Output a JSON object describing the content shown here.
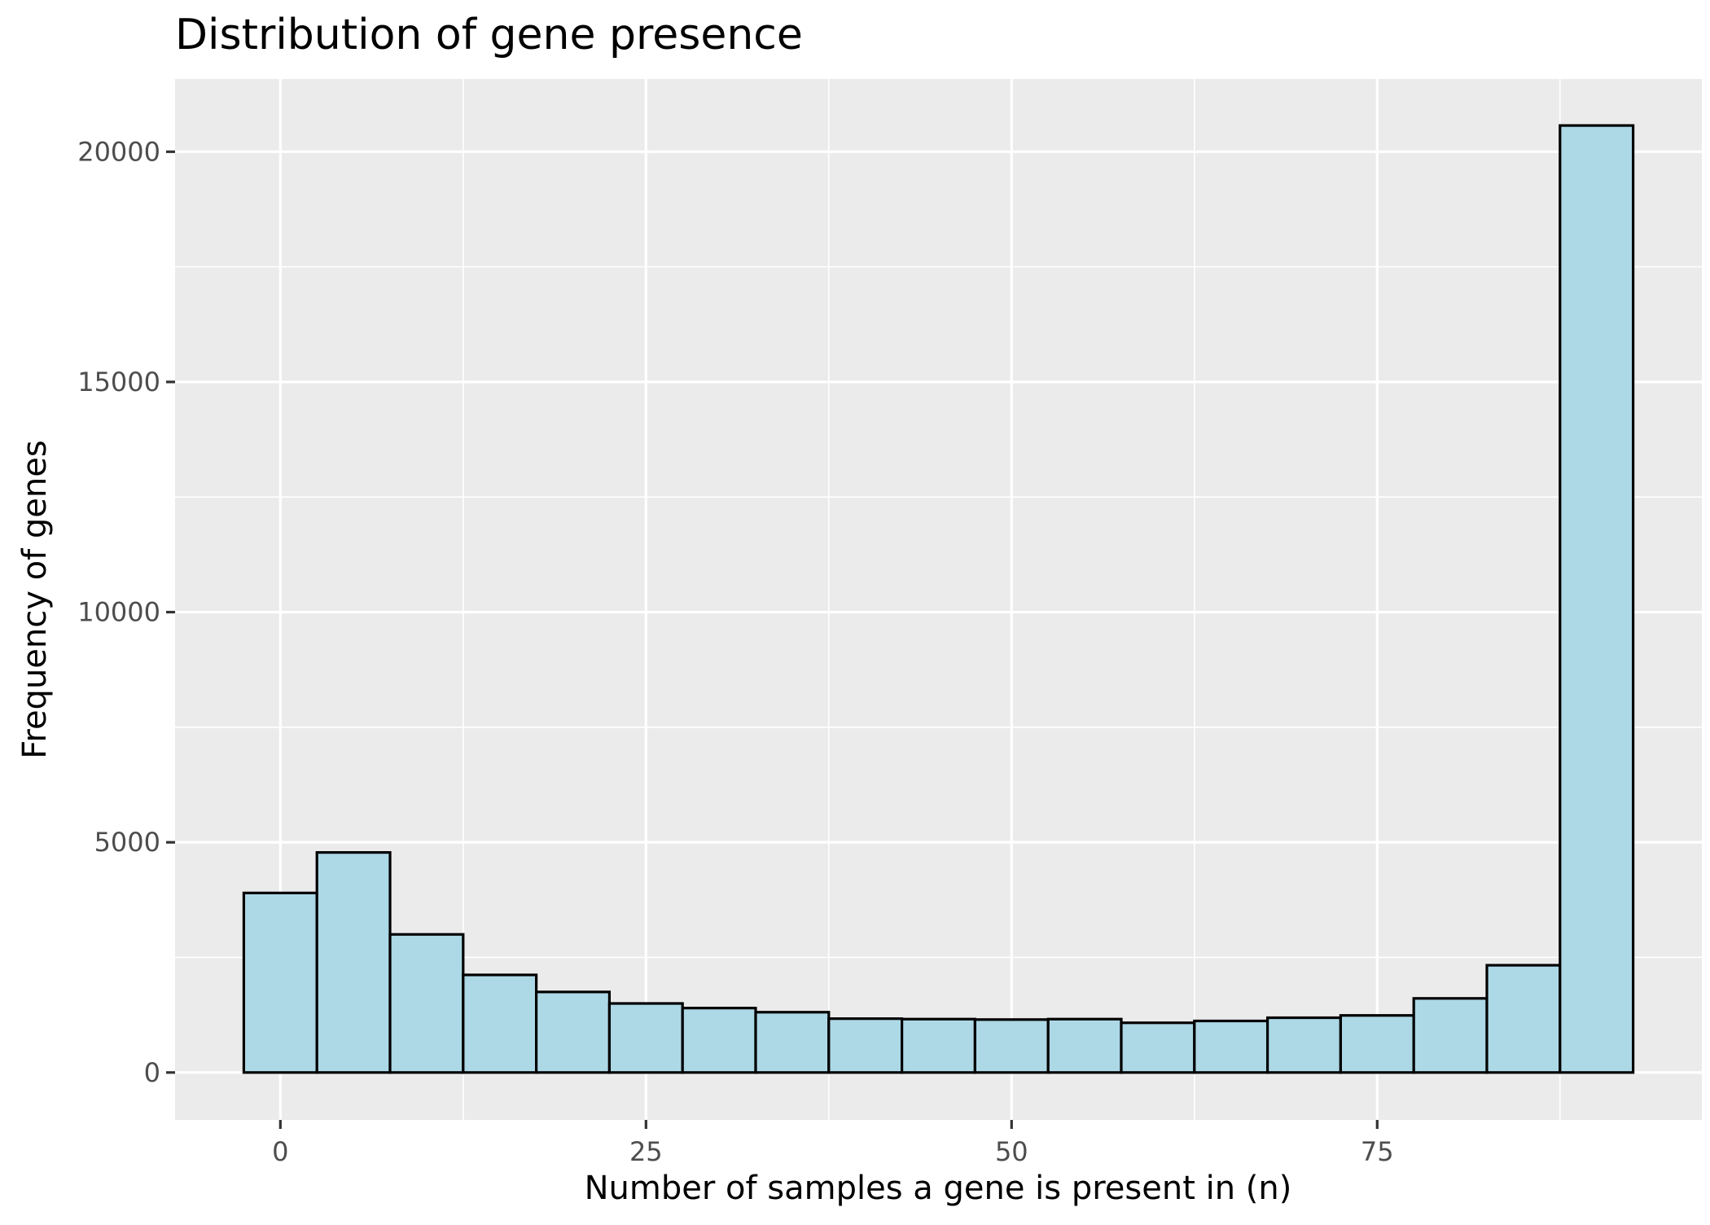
{
  "chart_data": {
    "type": "bar",
    "title": "Distribution of gene presence",
    "xlabel": "Number of samples a gene is present in (n)",
    "ylabel": "Frequency of genes",
    "bin_width": 5,
    "bins": [
      {
        "x_start": -2.5,
        "x_end": 2.5,
        "count": 3900
      },
      {
        "x_start": 2.5,
        "x_end": 7.5,
        "count": 4780
      },
      {
        "x_start": 7.5,
        "x_end": 12.5,
        "count": 3000
      },
      {
        "x_start": 12.5,
        "x_end": 17.5,
        "count": 2120
      },
      {
        "x_start": 17.5,
        "x_end": 22.5,
        "count": 1750
      },
      {
        "x_start": 22.5,
        "x_end": 27.5,
        "count": 1500
      },
      {
        "x_start": 27.5,
        "x_end": 32.5,
        "count": 1400
      },
      {
        "x_start": 32.5,
        "x_end": 37.5,
        "count": 1310
      },
      {
        "x_start": 37.5,
        "x_end": 42.5,
        "count": 1170
      },
      {
        "x_start": 42.5,
        "x_end": 47.5,
        "count": 1160
      },
      {
        "x_start": 47.5,
        "x_end": 52.5,
        "count": 1150
      },
      {
        "x_start": 52.5,
        "x_end": 57.5,
        "count": 1160
      },
      {
        "x_start": 57.5,
        "x_end": 62.5,
        "count": 1080
      },
      {
        "x_start": 62.5,
        "x_end": 67.5,
        "count": 1120
      },
      {
        "x_start": 67.5,
        "x_end": 72.5,
        "count": 1190
      },
      {
        "x_start": 72.5,
        "x_end": 77.5,
        "count": 1240
      },
      {
        "x_start": 77.5,
        "x_end": 82.5,
        "count": 1610
      },
      {
        "x_start": 82.5,
        "x_end": 87.5,
        "count": 2330
      },
      {
        "x_start": 87.5,
        "x_end": 92.5,
        "count": 20570
      }
    ],
    "xlim": [
      -7.2,
      97.2
    ],
    "ylim": [
      -1030,
      21580
    ],
    "x_ticks": [
      0,
      25,
      50,
      75
    ],
    "x_tick_labels": [
      "0",
      "25",
      "50",
      "75"
    ],
    "y_ticks": [
      0,
      5000,
      10000,
      15000,
      20000
    ],
    "y_tick_labels": [
      "0",
      "5000",
      "10000",
      "15000",
      "20000"
    ],
    "grid": true,
    "legend": "none",
    "colors": {
      "bar_fill": "#add8e6",
      "bar_stroke": "#000000",
      "panel_background": "#ebebeb",
      "grid": "#ffffff",
      "tick_label": "#4d4d4d"
    }
  }
}
